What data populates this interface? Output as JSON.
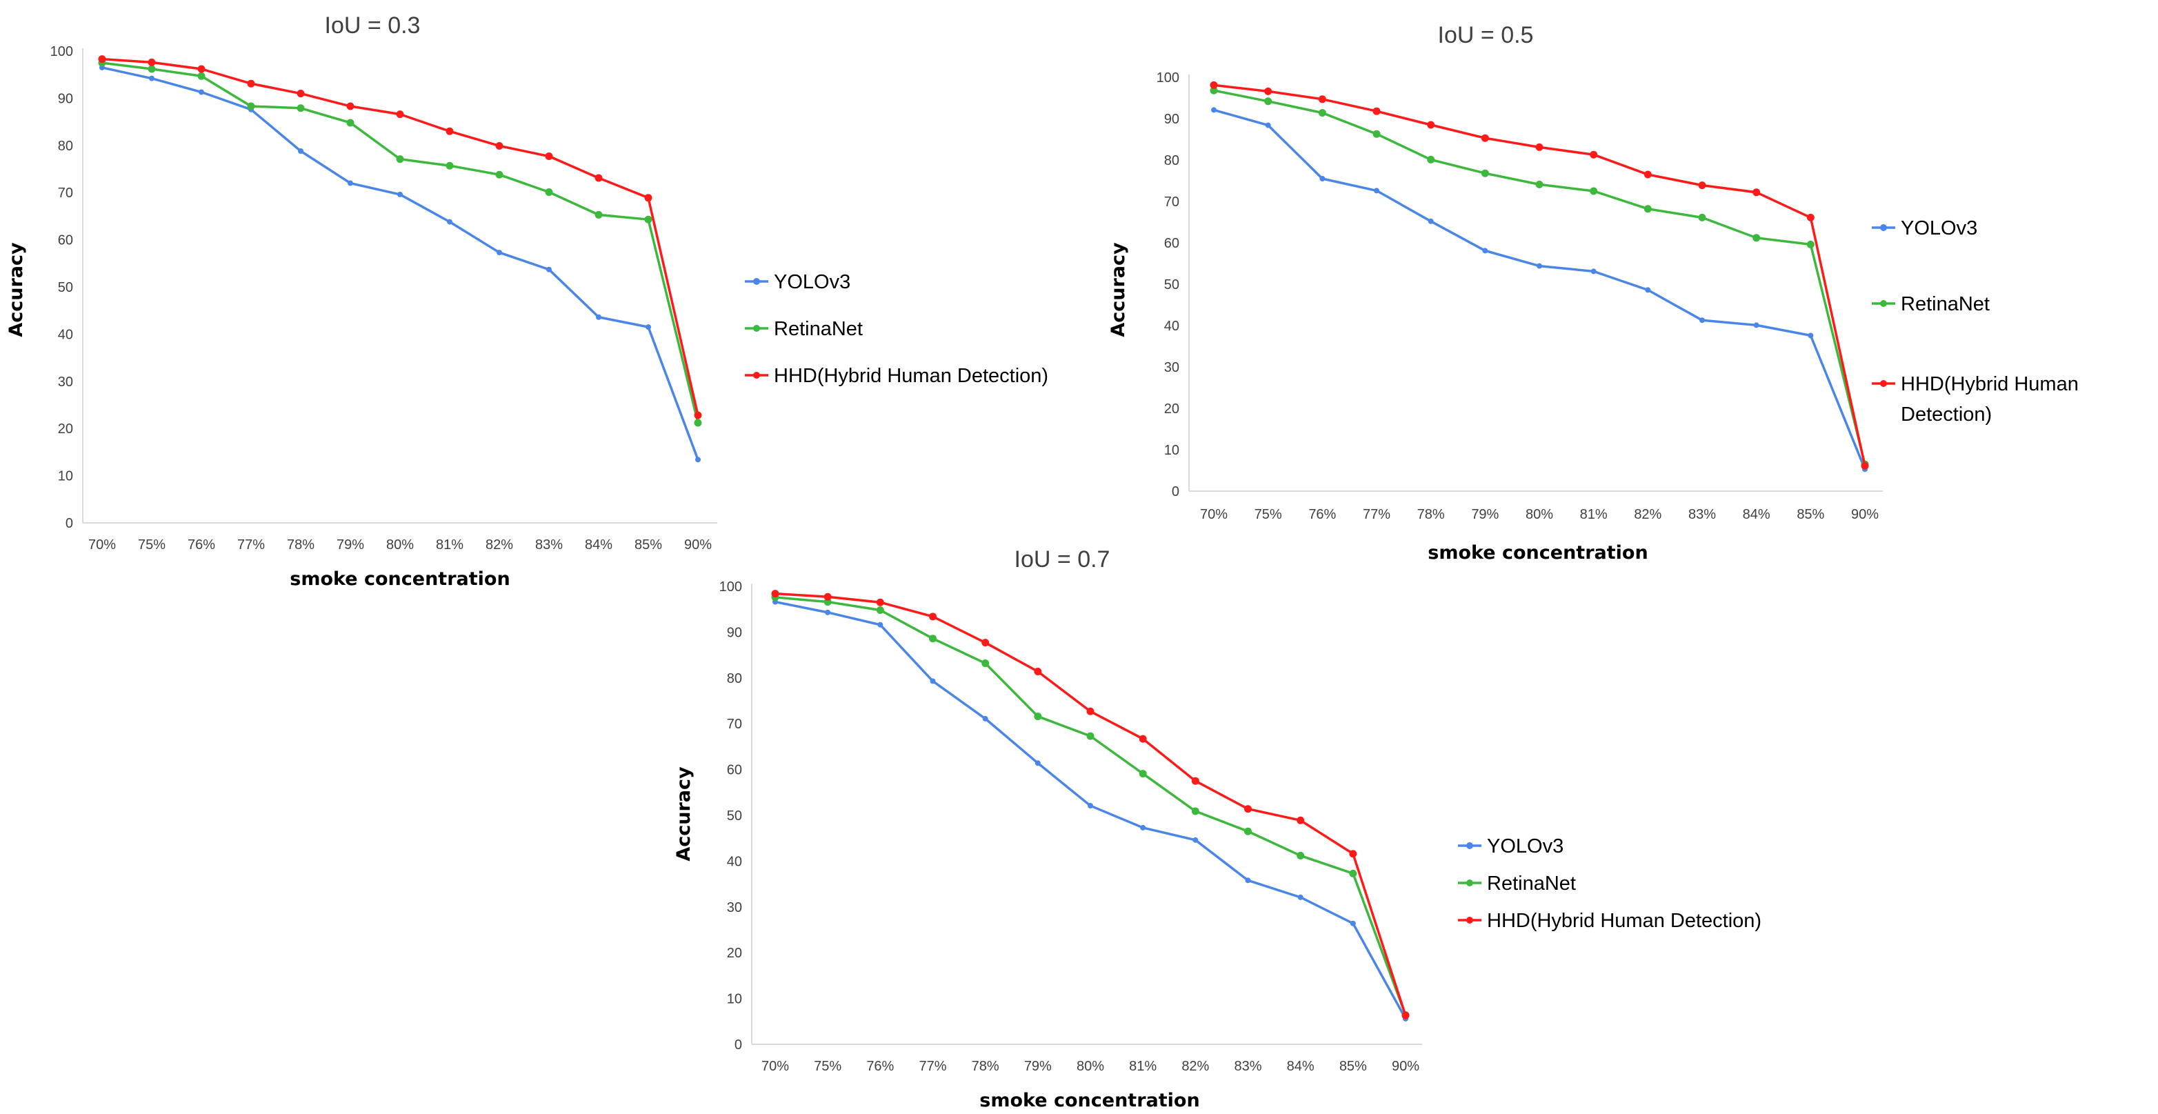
{
  "chart_data": [
    {
      "type": "line",
      "title": "IoU = 0.3",
      "xlabel": "smoke concentration",
      "ylabel": "Accuracy",
      "ylim": [
        0,
        100
      ],
      "yticks": [
        "0",
        "10",
        "20",
        "30",
        "40",
        "50",
        "60",
        "70",
        "80",
        "90",
        "100"
      ],
      "grid": false,
      "legend_position": "right",
      "categories": [
        "70%",
        "75%",
        "76%",
        "77%",
        "78%",
        "79%",
        "80%",
        "81%",
        "82%",
        "83%",
        "84%",
        "85%",
        "90%"
      ],
      "series": [
        {
          "name": "YOLOv3",
          "color": "#4a86e8",
          "values": [
            96.5,
            94.2,
            91.3,
            87.6,
            78.8,
            72.0,
            69.6,
            63.8,
            57.3,
            53.7,
            43.6,
            41.5,
            13.4
          ]
        },
        {
          "name": "RetinaNet",
          "color": "#3cb83c",
          "values": [
            97.5,
            96.2,
            94.7,
            88.3,
            87.9,
            84.8,
            77.1,
            75.7,
            73.8,
            70.1,
            65.3,
            64.3,
            21.2
          ]
        },
        {
          "name": "HHD(Hybrid Human Detection)",
          "color": "#ff1a1a",
          "values": [
            98.3,
            97.6,
            96.2,
            93.1,
            91.0,
            88.3,
            86.6,
            83.0,
            79.9,
            77.7,
            73.1,
            68.9,
            22.8
          ]
        }
      ]
    },
    {
      "type": "line",
      "title": "IoU = 0.5",
      "xlabel": "smoke concentration",
      "ylabel": "Accuracy",
      "ylim": [
        0,
        100
      ],
      "yticks": [
        "0",
        "10",
        "20",
        "30",
        "40",
        "50",
        "60",
        "70",
        "80",
        "90",
        "100"
      ],
      "grid": false,
      "legend_position": "right",
      "categories": [
        "70%",
        "75%",
        "76%",
        "77%",
        "78%",
        "79%",
        "80%",
        "81%",
        "82%",
        "83%",
        "84%",
        "85%",
        "90%"
      ],
      "series": [
        {
          "name": "YOLOv3",
          "color": "#4a86e8",
          "values": [
            92.1,
            88.4,
            75.5,
            72.6,
            65.2,
            58.1,
            54.4,
            53.1,
            48.6,
            41.3,
            40.1,
            37.6,
            5.3
          ]
        },
        {
          "name": "RetinaNet",
          "color": "#3cb83c",
          "values": [
            96.8,
            94.2,
            91.4,
            86.3,
            80.1,
            76.8,
            74.1,
            72.5,
            68.2,
            66.1,
            61.2,
            59.6,
            6.5
          ]
        },
        {
          "name": "HHD(Hybrid Human Detection)",
          "legend_lines": [
            "HHD(Hybrid Human",
            "Detection)"
          ],
          "color": "#ff1a1a",
          "values": [
            98.1,
            96.6,
            94.7,
            91.8,
            88.5,
            85.3,
            83.1,
            81.3,
            76.5,
            73.9,
            72.2,
            66.1,
            6.1
          ]
        }
      ]
    },
    {
      "type": "line",
      "title": "IoU = 0.7",
      "xlabel": "smoke concentration",
      "ylabel": "Accuracy",
      "ylim": [
        0,
        100
      ],
      "yticks": [
        "0",
        "10",
        "20",
        "30",
        "40",
        "50",
        "60",
        "70",
        "80",
        "90",
        "100"
      ],
      "grid": false,
      "legend_position": "right",
      "categories": [
        "70%",
        "75%",
        "76%",
        "77%",
        "78%",
        "79%",
        "80%",
        "81%",
        "82%",
        "83%",
        "84%",
        "85%",
        "90%"
      ],
      "series": [
        {
          "name": "YOLOv3",
          "color": "#4a86e8",
          "values": [
            96.6,
            94.3,
            91.6,
            79.3,
            71.1,
            61.4,
            52.1,
            47.3,
            44.6,
            35.8,
            32.1,
            26.4,
            5.6
          ]
        },
        {
          "name": "RetinaNet",
          "color": "#3cb83c",
          "values": [
            97.6,
            96.6,
            94.8,
            88.6,
            83.2,
            71.6,
            67.3,
            59.1,
            50.9,
            46.5,
            41.2,
            37.3,
            6.4
          ]
        },
        {
          "name": "HHD(Hybrid Human Detection)",
          "color": "#ff1a1a",
          "values": [
            98.4,
            97.7,
            96.5,
            93.4,
            87.7,
            81.4,
            72.7,
            66.7,
            57.5,
            51.4,
            48.9,
            41.6,
            6.3
          ]
        }
      ]
    }
  ]
}
